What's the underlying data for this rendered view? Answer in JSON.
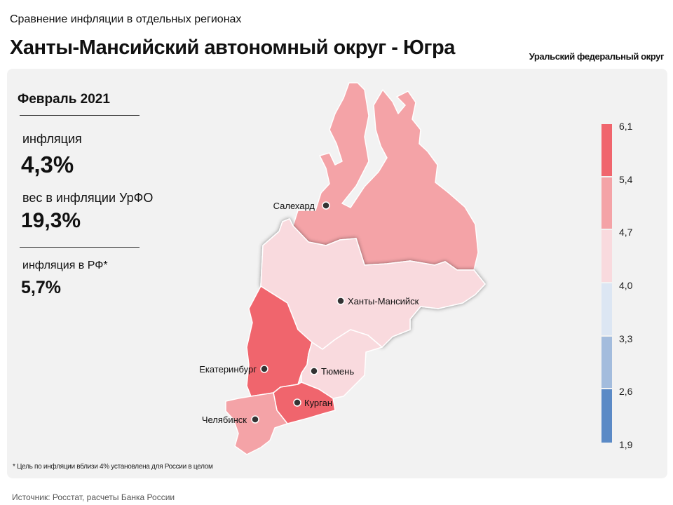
{
  "header": {
    "subtitle": "Сравнение инфляции в отдельных регионах",
    "title": "Ханты-Мансийский автономный округ - Югра",
    "district": "Уральский федеральный округ"
  },
  "stats": {
    "period": "Февраль 2021",
    "inflation_label": "инфляция",
    "inflation_value": "4,3%",
    "weight_label": "вес в инфляции  УрФО",
    "weight_value": "19,3%",
    "rf_label": "инфляция  в РФ*",
    "rf_value": "5,7%"
  },
  "map": {
    "cities": {
      "salekhard": "Салехард",
      "khanty": "Ханты-Мансийск",
      "yekaterinburg": "Екатеринбург",
      "tyumen": "Тюмень",
      "kurgan": "Курган",
      "chelyabinsk": "Челябинск"
    },
    "region_colors": {
      "yamal": "#f4a3a7",
      "khmao": "#f9dade",
      "sverdlovsk": "#f0656d",
      "tyumen": "#f9dade",
      "kurgan": "#f0656d",
      "chelyabinsk": "#f4a3a7"
    }
  },
  "legend": {
    "ticks": [
      "6,1",
      "5,4",
      "4,7",
      "4,0",
      "3,3",
      "2,6",
      "1,9"
    ],
    "colors": [
      "#f0656d",
      "#f4a3a7",
      "#f9dade",
      "#dce6f3",
      "#a3bcdd",
      "#5b8ac6"
    ]
  },
  "footnote": "* Цель по инфляции вблизи 4% установлена для России в целом",
  "source": "Источник: Росстат, расчеты Банка России"
}
